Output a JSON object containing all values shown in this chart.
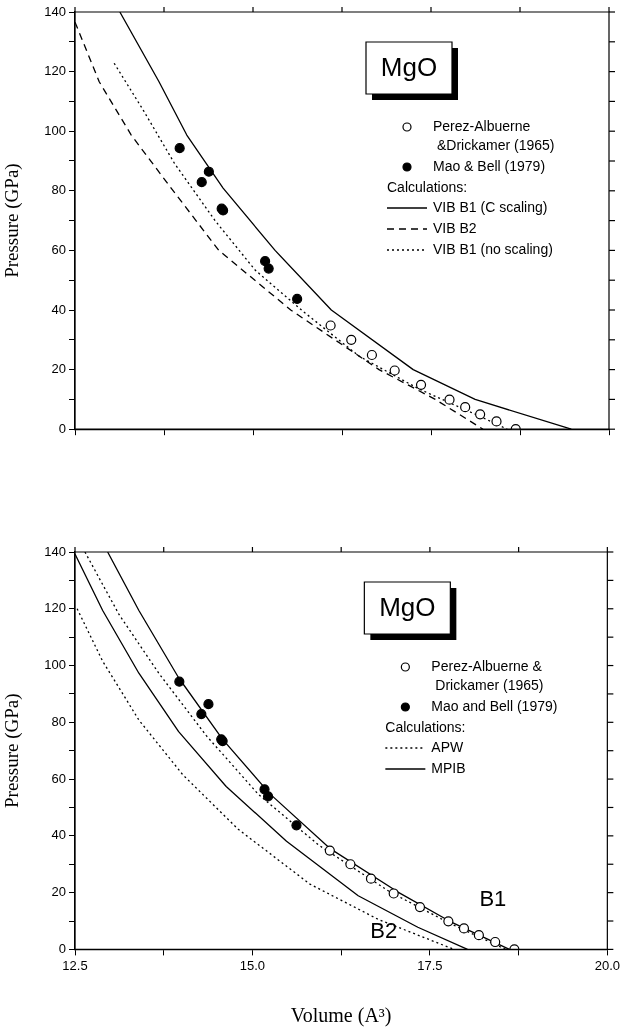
{
  "chart_data": [
    {
      "type": "scatter",
      "title": "MgO",
      "ylabel": "Pressure (GPa)",
      "xlim": [
        12.5,
        20
      ],
      "ylim": [
        0,
        140
      ],
      "xticks": [
        {
          "value": 12.5,
          "label": null
        },
        {
          "value": 13.75,
          "label": null
        },
        {
          "value": 15,
          "label": null
        },
        {
          "value": 16.25,
          "label": null
        },
        {
          "value": 17.5,
          "label": null
        },
        {
          "value": 18.75,
          "label": null
        },
        {
          "value": 20,
          "label": null
        }
      ],
      "yticks": [
        0,
        {
          "value": 10,
          "label": null
        },
        20,
        {
          "value": 30,
          "label": null
        },
        40,
        {
          "value": 50,
          "label": null
        },
        60,
        {
          "value": 70,
          "label": null
        },
        80,
        {
          "value": 90,
          "label": null
        },
        100,
        {
          "value": 110,
          "label": null
        },
        120,
        {
          "value": 130,
          "label": null
        },
        140
      ],
      "tick_labels": "y",
      "legend": "top right",
      "grid": false,
      "annotations": [
        "Calculations:"
      ],
      "series": [
        {
          "name": "Perez-Albuerne &Drickamer (1965)",
          "marker": "circle",
          "color": "#ffffff",
          "x": [
            16.09,
            16.38,
            16.67,
            16.99,
            17.36,
            17.76,
            17.98,
            18.19,
            18.42,
            18.69
          ],
          "values": [
            34.8,
            30.0,
            24.9,
            19.7,
            14.9,
            9.9,
            7.4,
            5.0,
            2.6,
            0
          ]
        },
        {
          "name": "Mao & Bell (1979)",
          "marker": "circle",
          "color": "#000000",
          "x": [
            13.97,
            14.28,
            14.38,
            14.56,
            14.58,
            15.17,
            15.22,
            15.62
          ],
          "values": [
            94.3,
            82.9,
            86.4,
            74.0,
            73.4,
            56.4,
            53.9,
            43.7
          ]
        },
        {
          "name": "VIB B1 (C scaling)",
          "type": "line",
          "line_style": "solid",
          "color": "#000000",
          "x": [
            13.13,
            13.68,
            14.07,
            14.58,
            15.31,
            16.1,
            17.25,
            18.12,
            19.47
          ],
          "values": [
            140,
            116.6,
            98.7,
            80.9,
            60,
            40,
            20,
            10,
            0
          ]
        },
        {
          "name": "VIB B2",
          "type": "line",
          "line_style": "dashed",
          "color": "#000000",
          "x": [
            12.5,
            12.84,
            13.29,
            13.85,
            14.52,
            15.53,
            16.77,
            17.56,
            18.23
          ],
          "values": [
            136.6,
            116.6,
            98.7,
            80.9,
            60,
            40,
            20,
            10,
            0
          ]
        },
        {
          "name": "VIB B1 (no scaling)",
          "type": "line",
          "line_style": "dotted",
          "color": "#000000",
          "x": [
            13.05,
            13.46,
            13.9,
            14.47,
            15.03,
            15.7,
            16.49,
            17.33,
            18.17,
            18.57
          ],
          "values": [
            122.8,
            107,
            89.1,
            69.9,
            53.4,
            39.6,
            24.5,
            13.5,
            4.5,
            0
          ]
        }
      ]
    },
    {
      "type": "scatter",
      "title": "MgO",
      "ylabel": "Pressure (GPa)",
      "xlabel": "Volume (A³)",
      "xlim": [
        12.5,
        20
      ],
      "ylim": [
        0,
        140
      ],
      "xticks": [
        12.5,
        {
          "value": 13.75,
          "label": null
        },
        {
          "value": 15,
          "label": "15.0"
        },
        {
          "value": 16.25,
          "label": null
        },
        17.5,
        {
          "value": 18.75,
          "label": null
        },
        {
          "value": 20,
          "label": "20.0"
        }
      ],
      "yticks": [
        0,
        {
          "value": 10,
          "label": null
        },
        20,
        {
          "value": 30,
          "label": null
        },
        40,
        {
          "value": 50,
          "label": null
        },
        60,
        {
          "value": 70,
          "label": null
        },
        80,
        {
          "value": 90,
          "label": null
        },
        100,
        {
          "value": 110,
          "label": null
        },
        120,
        {
          "value": 130,
          "label": null
        },
        140
      ],
      "legend": "top right",
      "grid": false,
      "annotations": [
        "Calculations:",
        "B1",
        "B2"
      ],
      "series": [
        {
          "name": "Perez-Albuerne & Drickamer (1965)",
          "marker": "circle",
          "color": "#ffffff",
          "x": [
            16.09,
            16.38,
            16.67,
            16.99,
            17.36,
            17.76,
            17.98,
            18.19,
            18.42,
            18.69
          ],
          "values": [
            34.8,
            30.0,
            24.9,
            19.7,
            14.9,
            9.9,
            7.4,
            5.0,
            2.6,
            0
          ]
        },
        {
          "name": "Mao and Bell (1979)",
          "marker": "circle",
          "color": "#000000",
          "x": [
            13.97,
            14.28,
            14.38,
            14.56,
            14.58,
            15.17,
            15.22,
            15.62
          ],
          "values": [
            94.3,
            82.9,
            86.4,
            74.0,
            73.4,
            56.4,
            53.9,
            43.7
          ]
        },
        {
          "name": "APW",
          "type": "line",
          "line_style": "dotted",
          "color": "#000000",
          "x": [
            12.64,
            13.12,
            13.68,
            14.35,
            15.08,
            15.93,
            16.94,
            17.78,
            18.57
          ],
          "values": [
            140,
            118,
            97.3,
            75.3,
            54.7,
            36.8,
            20.2,
            9.2,
            0
          ]
        },
        {
          "type": "line",
          "line_style": "dotted",
          "color": "#000000",
          "x": [
            12.53,
            12.89,
            13.4,
            14.02,
            14.8,
            15.81,
            16.77,
            17.84
          ],
          "values": [
            120,
            101.5,
            80.8,
            61.5,
            42.3,
            23.0,
            10.6,
            0
          ]
        },
        {
          "name": "MPIB",
          "type": "line",
          "line_style": "solid",
          "color": "#000000",
          "x": [
            12.96,
            13.4,
            13.96,
            14.58,
            15.25,
            16.1,
            17.05,
            17.78,
            18.62
          ],
          "values": [
            140,
            119.4,
            95.7,
            74.0,
            54.7,
            35.4,
            20.2,
            9.9,
            0
          ]
        },
        {
          "type": "line",
          "line_style": "solid",
          "color": "#000000",
          "x": [
            12.5,
            12.89,
            13.4,
            13.96,
            14.63,
            15.48,
            16.49,
            17.33,
            18.03
          ],
          "values": [
            139.3,
            119.4,
            97.3,
            76.7,
            57.4,
            38.1,
            18.9,
            7.8,
            0
          ]
        }
      ]
    }
  ]
}
